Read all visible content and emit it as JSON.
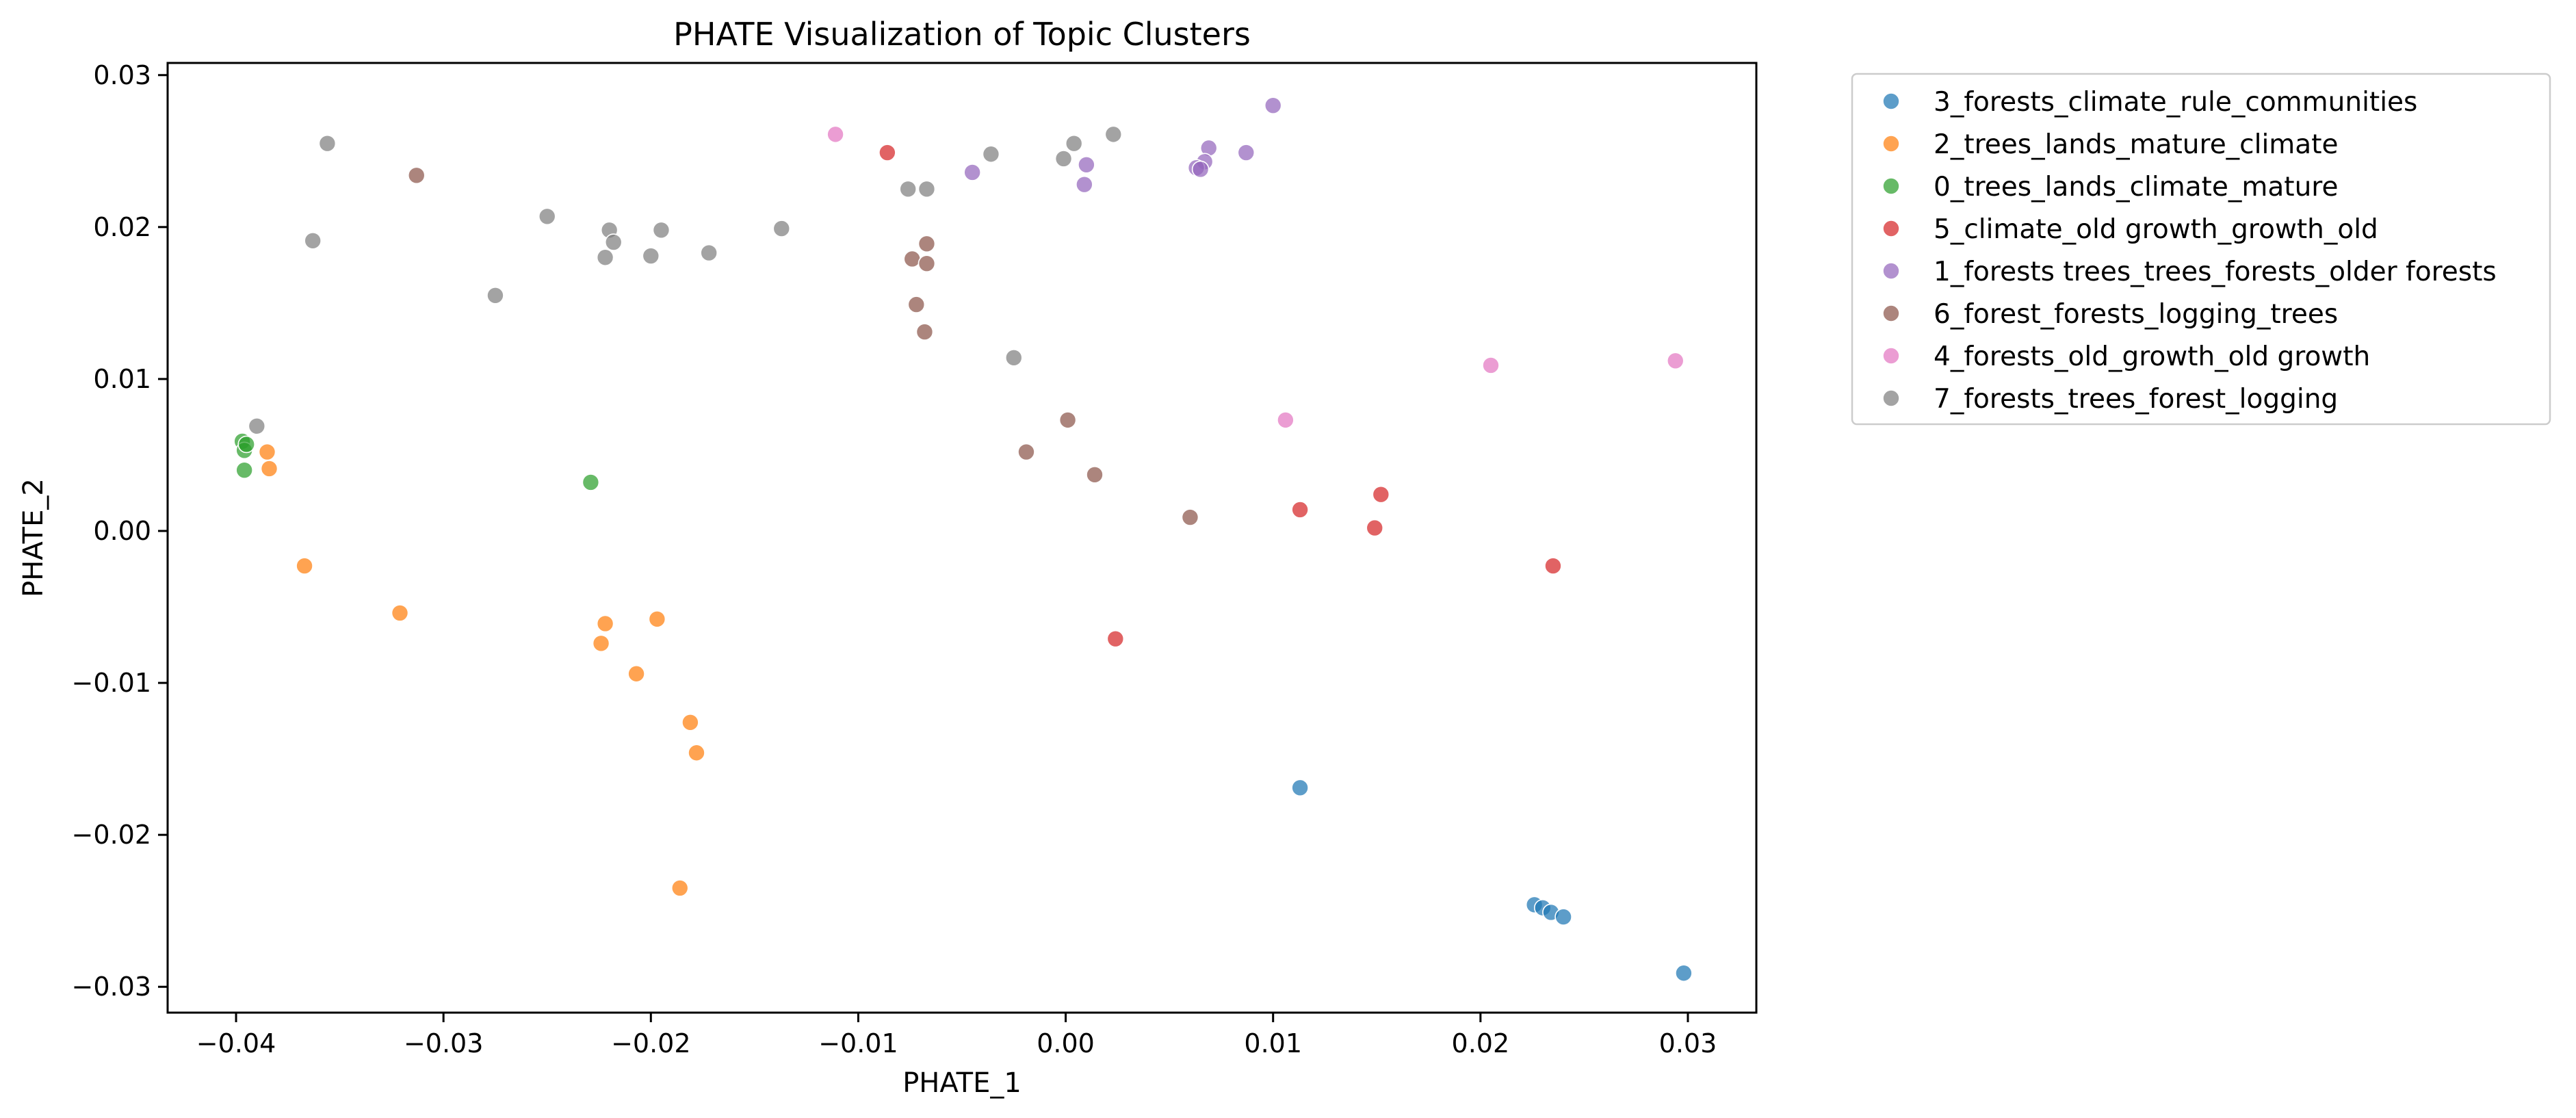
{
  "chart_data": {
    "type": "scatter",
    "title": "PHATE Visualization of Topic Clusters",
    "xlabel": "PHATE_1",
    "ylabel": "PHATE_2",
    "xlim": [
      -0.0433,
      0.0333
    ],
    "ylim": [
      -0.0317,
      0.0308
    ],
    "xticks": [
      -0.04,
      -0.03,
      -0.02,
      -0.01,
      0.0,
      0.01,
      0.02,
      0.03
    ],
    "xtick_labels": [
      "−0.04",
      "−0.03",
      "−0.02",
      "−0.01",
      "0.00",
      "0.01",
      "0.02",
      "0.03"
    ],
    "yticks": [
      -0.03,
      -0.02,
      -0.01,
      0.0,
      0.01,
      0.02,
      0.03
    ],
    "ytick_labels": [
      "−0.03",
      "−0.02",
      "−0.01",
      "0.00",
      "0.01",
      "0.02",
      "0.03"
    ],
    "grid": false,
    "legend_position": "outside-top-right",
    "series": [
      {
        "name": "3_forests_climate_rule_communities",
        "color": "#1f77b4",
        "points": [
          [
            0.0113,
            -0.0169
          ],
          [
            0.0226,
            -0.0246
          ],
          [
            0.023,
            -0.0248
          ],
          [
            0.0234,
            -0.0251
          ],
          [
            0.024,
            -0.0254
          ],
          [
            0.0298,
            -0.0291
          ]
        ]
      },
      {
        "name": "2_trees_lands_mature_climate",
        "color": "#ff7f0e",
        "points": [
          [
            -0.0385,
            0.0052
          ],
          [
            -0.0384,
            0.0041
          ],
          [
            -0.0367,
            -0.0023
          ],
          [
            -0.0321,
            -0.0054
          ],
          [
            -0.0222,
            -0.0061
          ],
          [
            -0.0224,
            -0.0074
          ],
          [
            -0.0197,
            -0.0058
          ],
          [
            -0.0207,
            -0.0094
          ],
          [
            -0.0181,
            -0.0126
          ],
          [
            -0.0178,
            -0.0146
          ],
          [
            -0.0186,
            -0.0235
          ]
        ]
      },
      {
        "name": "0_trees_lands_climate_mature",
        "color": "#2ca02c",
        "points": [
          [
            -0.0397,
            0.0059
          ],
          [
            -0.0396,
            0.0053
          ],
          [
            -0.0395,
            0.0057
          ],
          [
            -0.0396,
            0.004
          ],
          [
            -0.0229,
            0.0032
          ]
        ]
      },
      {
        "name": "5_climate_old growth_growth_old",
        "color": "#d62728",
        "points": [
          [
            -0.0086,
            0.0249
          ],
          [
            0.0113,
            0.0014
          ],
          [
            0.0152,
            0.0024
          ],
          [
            0.0149,
            0.0002
          ],
          [
            0.0024,
            -0.0071
          ],
          [
            0.0235,
            -0.0023
          ]
        ]
      },
      {
        "name": "1_forests trees_trees_forests_older forests",
        "color": "#9467bd",
        "points": [
          [
            -0.0045,
            0.0236
          ],
          [
            0.001,
            0.0241
          ],
          [
            0.0009,
            0.0228
          ],
          [
            0.0069,
            0.0252
          ],
          [
            0.0067,
            0.0243
          ],
          [
            0.0063,
            0.0239
          ],
          [
            0.0065,
            0.0238
          ],
          [
            0.0087,
            0.0249
          ],
          [
            0.01,
            0.028
          ]
        ]
      },
      {
        "name": "6_forest_forests_logging_trees",
        "color": "#8c564b",
        "points": [
          [
            -0.0313,
            0.0234
          ],
          [
            -0.0074,
            0.0179
          ],
          [
            -0.0067,
            0.0189
          ],
          [
            -0.0067,
            0.0176
          ],
          [
            -0.0072,
            0.0149
          ],
          [
            -0.0068,
            0.0131
          ],
          [
            -0.0019,
            0.0052
          ],
          [
            0.0001,
            0.0073
          ],
          [
            0.0014,
            0.0037
          ],
          [
            0.006,
            0.0009
          ]
        ]
      },
      {
        "name": "4_forests_old_growth_old growth",
        "color": "#e377c2",
        "points": [
          [
            -0.0111,
            0.0261
          ],
          [
            0.0106,
            0.0073
          ],
          [
            0.0205,
            0.0109
          ],
          [
            0.0294,
            0.0112
          ]
        ]
      },
      {
        "name": "7_forests_trees_forest_logging",
        "color": "#7f7f7f",
        "points": [
          [
            -0.0356,
            0.0255
          ],
          [
            -0.0363,
            0.0191
          ],
          [
            -0.039,
            0.0069
          ],
          [
            -0.025,
            0.0207
          ],
          [
            -0.0275,
            0.0155
          ],
          [
            -0.022,
            0.0198
          ],
          [
            -0.0218,
            0.019
          ],
          [
            -0.0222,
            0.018
          ],
          [
            -0.0195,
            0.0198
          ],
          [
            -0.02,
            0.0181
          ],
          [
            -0.0172,
            0.0183
          ],
          [
            -0.0137,
            0.0199
          ],
          [
            -0.0076,
            0.0225
          ],
          [
            -0.0067,
            0.0225
          ],
          [
            -0.0036,
            0.0248
          ],
          [
            -0.0025,
            0.0114
          ],
          [
            -0.0001,
            0.0245
          ],
          [
            0.0004,
            0.0255
          ],
          [
            0.0023,
            0.0261
          ]
        ]
      }
    ]
  }
}
